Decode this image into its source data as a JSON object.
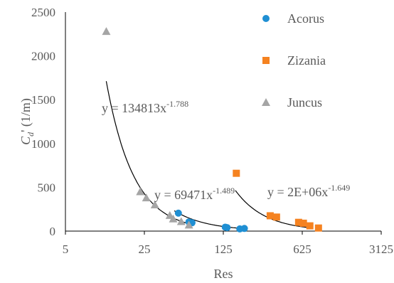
{
  "chart_data": {
    "type": "scatter",
    "xlabel": "Res",
    "ylabel_main": "C",
    "ylabel_sub": "d",
    "ylabel_rest": "' (1/m)",
    "x_scale": "log5",
    "xlim": [
      5,
      3125
    ],
    "ylim": [
      0,
      2500
    ],
    "x_ticks": [
      "5",
      "25",
      "125",
      "625",
      "3125"
    ],
    "y_ticks": [
      "0",
      "500",
      "1000",
      "1500",
      "2000",
      "2500"
    ],
    "grid": false,
    "legend_position": "top-right",
    "series": [
      {
        "name": "Acorus",
        "marker": "circle",
        "color": "#1f8fd3",
        "x": [
          50,
          62,
          66,
          130,
          135,
          175,
          192
        ],
        "y": [
          205,
          105,
          95,
          45,
          40,
          25,
          30
        ]
      },
      {
        "name": "Zizania",
        "marker": "square",
        "color": "#f58220",
        "x": [
          163,
          325,
          370,
          580,
          640,
          730,
          870
        ],
        "y": [
          660,
          175,
          160,
          100,
          90,
          60,
          35
        ]
      },
      {
        "name": "Juncus",
        "marker": "triangle",
        "color": "#a5a5a5",
        "x": [
          11.5,
          23,
          26,
          31,
          42,
          45,
          53,
          62
        ],
        "y": [
          2280,
          450,
          380,
          300,
          180,
          140,
          110,
          70
        ]
      }
    ],
    "trendlines": [
      {
        "series": "Juncus",
        "coef": 134813,
        "exp": -1.788,
        "x_range": [
          11.5,
          65
        ],
        "label_base": "y = 134813x",
        "label_exp": "-1.788"
      },
      {
        "series": "Acorus",
        "coef": 69471,
        "exp": -1.489,
        "x_range": [
          46,
          200
        ],
        "label_base": "y = 69471x",
        "label_exp": "-1.489"
      },
      {
        "series": "Zizania",
        "coef": 2000000,
        "exp": -1.649,
        "x_range": [
          160,
          700
        ],
        "label_base": "y = 2E+06x",
        "label_exp": "-1.649"
      }
    ]
  }
}
